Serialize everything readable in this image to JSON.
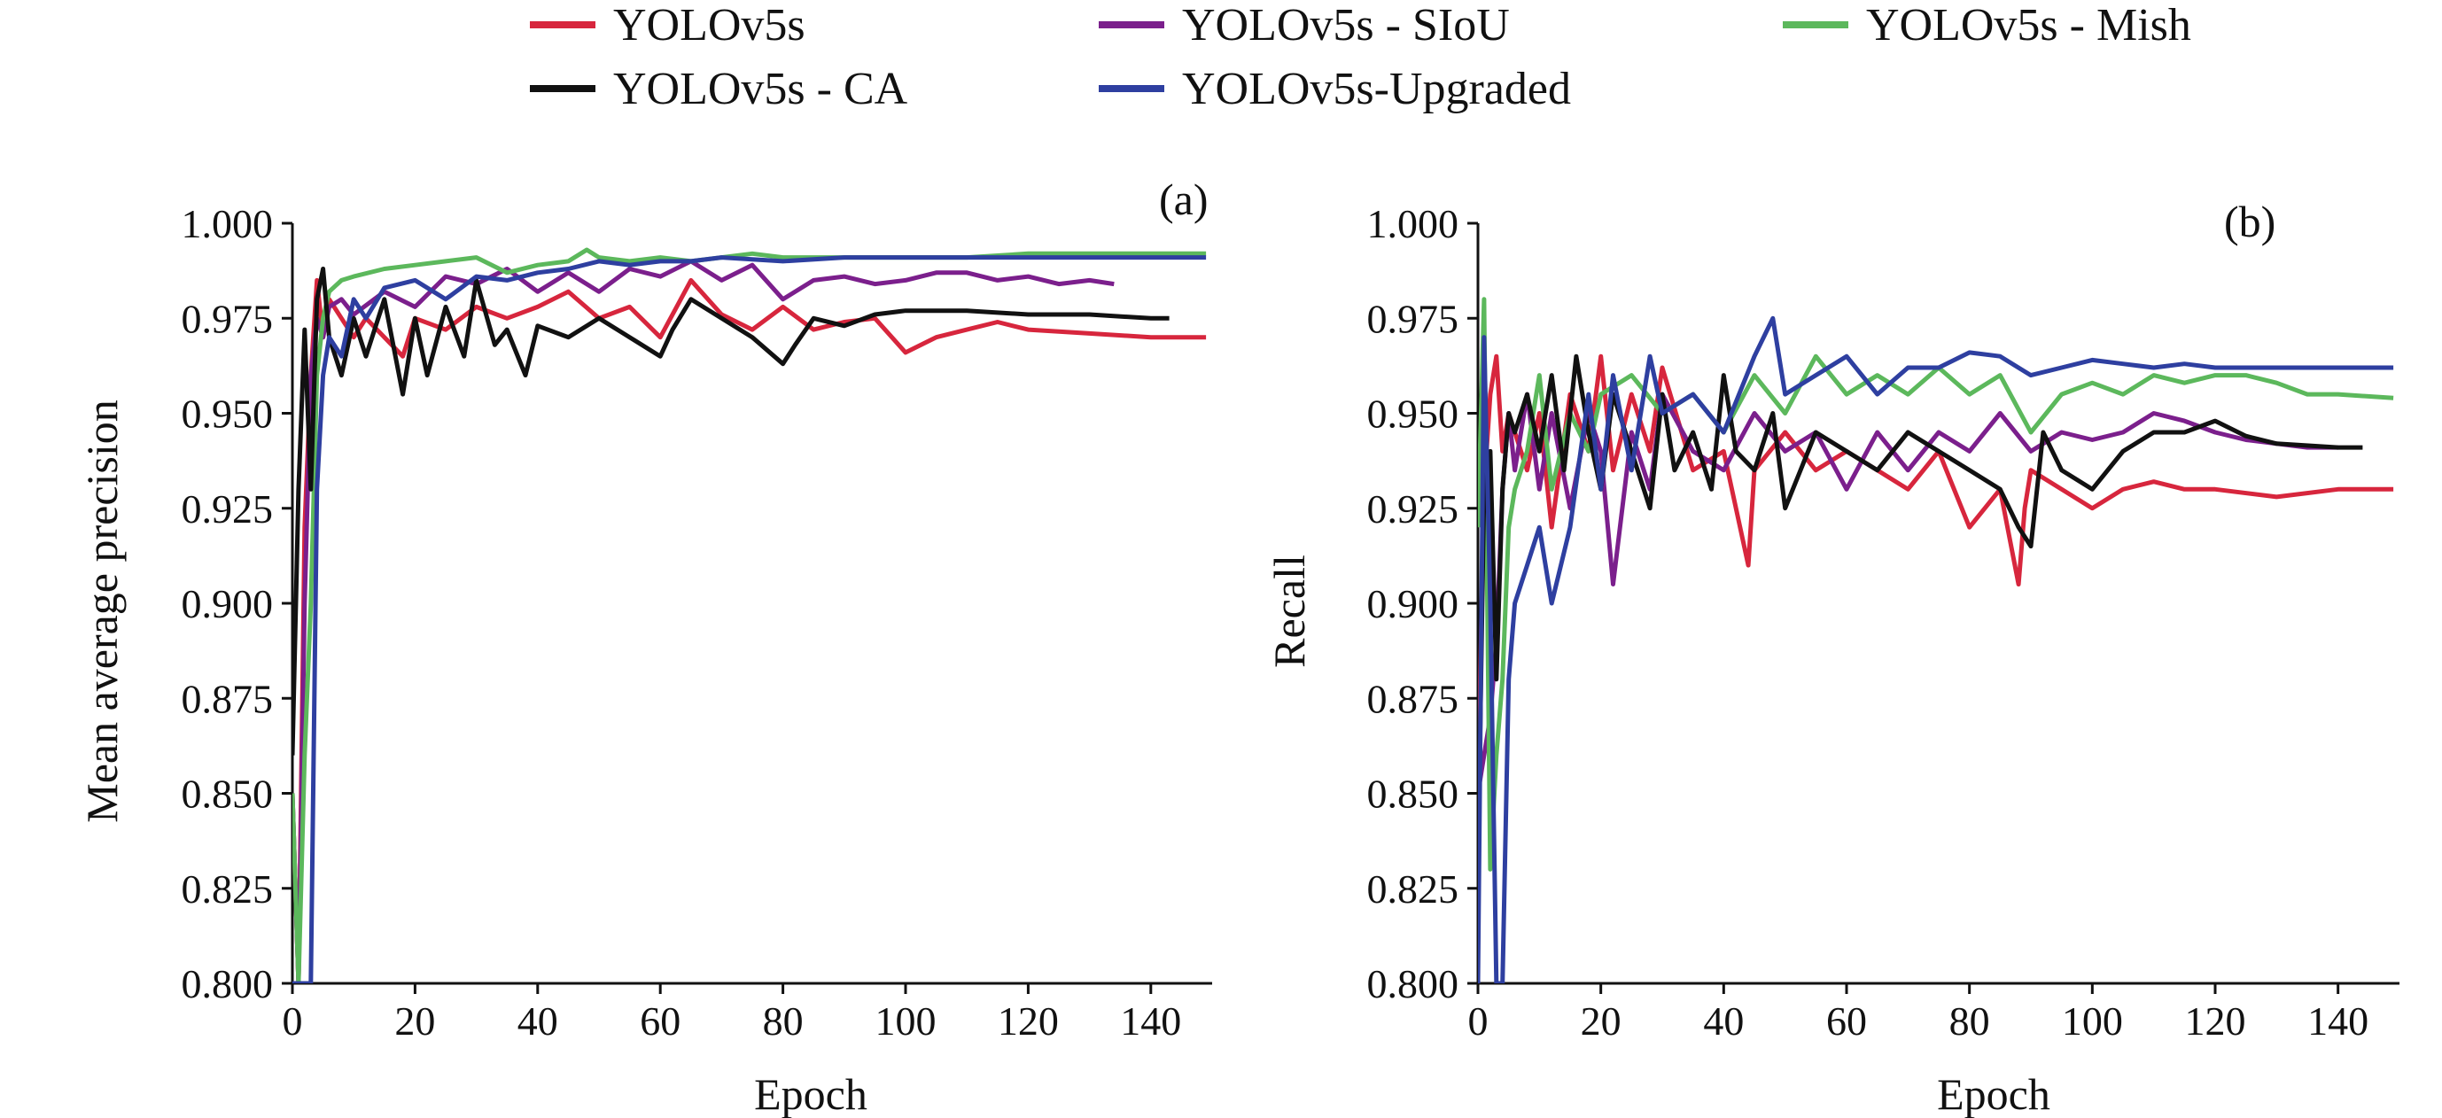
{
  "colors": {
    "YOLOv5s": "#d7263d",
    "YOLOv5s - SIoU": "#7b1f8c",
    "YOLOv5s - Mish": "#5cb85c",
    "YOLOv5s - CA": "#111111",
    "YOLOv5s-Upgraded": "#2e3fa0"
  },
  "legend": [
    {
      "label": "YOLOv5s"
    },
    {
      "label": "YOLOv5s - SIoU"
    },
    {
      "label": "YOLOv5s - Mish"
    },
    {
      "label": "YOLOv5s - CA"
    },
    {
      "label": "YOLOv5s-Upgraded"
    }
  ],
  "chart_data": [
    {
      "type": "line",
      "panel_label": "(a)",
      "xlabel": "Epoch",
      "ylabel": "Mean average precision",
      "xlim": [
        0,
        150
      ],
      "ylim": [
        0.8,
        1.0
      ],
      "xticks": [
        "0",
        "20",
        "40",
        "60",
        "80",
        "100",
        "120",
        "140"
      ],
      "yticks": [
        "0.800",
        "0.825",
        "0.850",
        "0.875",
        "0.900",
        "0.925",
        "0.950",
        "0.975",
        "1.000"
      ],
      "series": [
        {
          "name": "YOLOv5s",
          "x": [
            0,
            1,
            2,
            3,
            4,
            5,
            6,
            8,
            10,
            12,
            15,
            18,
            20,
            25,
            30,
            35,
            40,
            45,
            50,
            55,
            60,
            65,
            70,
            75,
            80,
            85,
            90,
            95,
            100,
            105,
            110,
            115,
            120,
            130,
            140,
            149
          ],
          "y": [
            0.85,
            0.8,
            0.92,
            0.96,
            0.985,
            0.97,
            0.98,
            0.975,
            0.97,
            0.975,
            0.97,
            0.965,
            0.975,
            0.972,
            0.978,
            0.975,
            0.978,
            0.982,
            0.975,
            0.978,
            0.97,
            0.985,
            0.976,
            0.972,
            0.978,
            0.972,
            0.974,
            0.975,
            0.966,
            0.97,
            0.972,
            0.974,
            0.972,
            0.971,
            0.97,
            0.97
          ]
        },
        {
          "name": "YOLOv5s - SIoU",
          "x": [
            0,
            1,
            2,
            3,
            4,
            5,
            6,
            8,
            10,
            15,
            20,
            25,
            30,
            35,
            40,
            45,
            50,
            55,
            60,
            65,
            70,
            75,
            80,
            85,
            90,
            95,
            100,
            105,
            110,
            115,
            120,
            125,
            130,
            134
          ],
          "y": [
            0.85,
            0.8,
            0.9,
            0.96,
            0.975,
            0.97,
            0.978,
            0.98,
            0.976,
            0.982,
            0.978,
            0.986,
            0.984,
            0.988,
            0.982,
            0.987,
            0.982,
            0.988,
            0.986,
            0.99,
            0.985,
            0.989,
            0.98,
            0.985,
            0.986,
            0.984,
            0.985,
            0.987,
            0.987,
            0.985,
            0.986,
            0.984,
            0.985,
            0.984
          ]
        },
        {
          "name": "YOLOv5s - Mish",
          "x": [
            0,
            1,
            2,
            3,
            4,
            5,
            6,
            8,
            10,
            15,
            20,
            25,
            30,
            35,
            40,
            45,
            48,
            50,
            55,
            60,
            65,
            70,
            75,
            80,
            90,
            100,
            110,
            120,
            130,
            140,
            149
          ],
          "y": [
            0.85,
            0.8,
            0.86,
            0.9,
            0.96,
            0.975,
            0.982,
            0.985,
            0.986,
            0.988,
            0.989,
            0.99,
            0.991,
            0.987,
            0.989,
            0.99,
            0.993,
            0.991,
            0.99,
            0.991,
            0.99,
            0.991,
            0.992,
            0.991,
            0.991,
            0.991,
            0.991,
            0.992,
            0.992,
            0.992,
            0.992
          ]
        },
        {
          "name": "YOLOv5s - CA",
          "x": [
            0,
            1,
            2,
            3,
            4,
            5,
            6,
            8,
            10,
            12,
            15,
            18,
            20,
            22,
            25,
            28,
            30,
            33,
            35,
            38,
            40,
            45,
            50,
            55,
            60,
            62,
            65,
            70,
            75,
            80,
            82,
            85,
            90,
            95,
            100,
            110,
            120,
            130,
            140,
            143
          ],
          "y": [
            0.86,
            0.93,
            0.972,
            0.93,
            0.98,
            0.988,
            0.97,
            0.96,
            0.975,
            0.965,
            0.98,
            0.955,
            0.975,
            0.96,
            0.978,
            0.965,
            0.985,
            0.968,
            0.972,
            0.96,
            0.973,
            0.97,
            0.975,
            0.97,
            0.965,
            0.972,
            0.98,
            0.975,
            0.97,
            0.963,
            0.968,
            0.975,
            0.973,
            0.976,
            0.977,
            0.977,
            0.976,
            0.976,
            0.975,
            0.975
          ]
        },
        {
          "name": "YOLOv5s-Upgraded",
          "x": [
            0,
            2,
            3,
            4,
            5,
            6,
            8,
            10,
            12,
            15,
            20,
            25,
            30,
            35,
            40,
            45,
            50,
            55,
            60,
            65,
            70,
            80,
            90,
            100,
            110,
            120,
            130,
            140,
            149
          ],
          "y": [
            0.8,
            0.8,
            0.8,
            0.93,
            0.96,
            0.97,
            0.965,
            0.98,
            0.975,
            0.983,
            0.985,
            0.98,
            0.986,
            0.985,
            0.987,
            0.988,
            0.99,
            0.989,
            0.99,
            0.99,
            0.991,
            0.99,
            0.991,
            0.991,
            0.991,
            0.991,
            0.991,
            0.991,
            0.991
          ]
        }
      ]
    },
    {
      "type": "line",
      "panel_label": "(b)",
      "xlabel": "Epoch",
      "ylabel": "Recall",
      "xlim": [
        0,
        150
      ],
      "ylim": [
        0.8,
        1.0
      ],
      "xticks": [
        "0",
        "20",
        "40",
        "60",
        "80",
        "100",
        "120",
        "140"
      ],
      "yticks": [
        "0.800",
        "0.825",
        "0.850",
        "0.875",
        "0.900",
        "0.925",
        "0.950",
        "0.975",
        "1.000"
      ],
      "series": [
        {
          "name": "YOLOv5s",
          "x": [
            0,
            1,
            2,
            3,
            4,
            5,
            6,
            8,
            10,
            12,
            15,
            18,
            20,
            22,
            25,
            28,
            30,
            35,
            40,
            44,
            45,
            50,
            55,
            60,
            65,
            70,
            75,
            80,
            85,
            88,
            89,
            90,
            95,
            100,
            105,
            110,
            115,
            120,
            130,
            140,
            149
          ],
          "y": [
            0.85,
            0.93,
            0.955,
            0.965,
            0.94,
            0.95,
            0.945,
            0.935,
            0.95,
            0.92,
            0.955,
            0.94,
            0.965,
            0.935,
            0.955,
            0.94,
            0.962,
            0.935,
            0.94,
            0.91,
            0.935,
            0.945,
            0.935,
            0.94,
            0.935,
            0.93,
            0.94,
            0.92,
            0.93,
            0.905,
            0.925,
            0.935,
            0.93,
            0.925,
            0.93,
            0.932,
            0.93,
            0.93,
            0.928,
            0.93,
            0.93
          ]
        },
        {
          "name": "YOLOv5s - SIoU",
          "x": [
            0,
            1,
            2,
            3,
            4,
            5,
            6,
            8,
            10,
            12,
            15,
            18,
            20,
            22,
            25,
            28,
            30,
            35,
            40,
            45,
            50,
            55,
            60,
            65,
            70,
            75,
            80,
            85,
            90,
            95,
            100,
            105,
            110,
            115,
            120,
            125,
            130,
            135,
            140
          ],
          "y": [
            0.85,
            0.86,
            0.87,
            0.89,
            0.93,
            0.95,
            0.935,
            0.955,
            0.93,
            0.95,
            0.925,
            0.95,
            0.94,
            0.905,
            0.945,
            0.93,
            0.955,
            0.94,
            0.935,
            0.95,
            0.94,
            0.945,
            0.93,
            0.945,
            0.935,
            0.945,
            0.94,
            0.95,
            0.94,
            0.945,
            0.943,
            0.945,
            0.95,
            0.948,
            0.945,
            0.943,
            0.942,
            0.941,
            0.941
          ]
        },
        {
          "name": "YOLOv5s - Mish",
          "x": [
            0,
            1,
            2,
            3,
            4,
            5,
            6,
            8,
            10,
            12,
            15,
            18,
            20,
            25,
            30,
            35,
            40,
            45,
            50,
            55,
            60,
            65,
            70,
            75,
            80,
            85,
            90,
            95,
            100,
            105,
            110,
            115,
            120,
            125,
            130,
            135,
            140,
            149
          ],
          "y": [
            0.92,
            0.98,
            0.83,
            0.86,
            0.88,
            0.92,
            0.93,
            0.94,
            0.96,
            0.93,
            0.95,
            0.94,
            0.955,
            0.96,
            0.95,
            0.955,
            0.945,
            0.96,
            0.95,
            0.965,
            0.955,
            0.96,
            0.955,
            0.962,
            0.955,
            0.96,
            0.945,
            0.955,
            0.958,
            0.955,
            0.96,
            0.958,
            0.96,
            0.96,
            0.958,
            0.955,
            0.955,
            0.954
          ]
        },
        {
          "name": "YOLOv5s - CA",
          "x": [
            0,
            1,
            2,
            3,
            4,
            5,
            6,
            8,
            10,
            12,
            14,
            16,
            18,
            20,
            22,
            25,
            28,
            30,
            32,
            35,
            38,
            40,
            42,
            45,
            48,
            50,
            55,
            60,
            65,
            70,
            75,
            80,
            85,
            88,
            90,
            92,
            95,
            100,
            105,
            110,
            115,
            120,
            125,
            130,
            140,
            144
          ],
          "y": [
            0.83,
            0.93,
            0.94,
            0.88,
            0.93,
            0.95,
            0.945,
            0.955,
            0.94,
            0.96,
            0.935,
            0.965,
            0.945,
            0.93,
            0.955,
            0.94,
            0.925,
            0.955,
            0.935,
            0.945,
            0.93,
            0.96,
            0.94,
            0.935,
            0.95,
            0.925,
            0.945,
            0.94,
            0.935,
            0.945,
            0.94,
            0.935,
            0.93,
            0.92,
            0.915,
            0.945,
            0.935,
            0.93,
            0.94,
            0.945,
            0.945,
            0.948,
            0.944,
            0.942,
            0.941,
            0.941
          ]
        },
        {
          "name": "YOLOv5s-Upgraded",
          "x": [
            0,
            1,
            2,
            3,
            4,
            5,
            6,
            8,
            10,
            12,
            15,
            18,
            20,
            22,
            25,
            28,
            30,
            35,
            40,
            45,
            48,
            50,
            55,
            60,
            65,
            70,
            75,
            80,
            85,
            90,
            95,
            100,
            105,
            110,
            115,
            120,
            130,
            140,
            149
          ],
          "y": [
            0.8,
            0.97,
            0.9,
            0.8,
            0.8,
            0.88,
            0.9,
            0.91,
            0.92,
            0.9,
            0.92,
            0.955,
            0.93,
            0.96,
            0.935,
            0.965,
            0.95,
            0.955,
            0.945,
            0.965,
            0.975,
            0.955,
            0.96,
            0.965,
            0.955,
            0.962,
            0.962,
            0.966,
            0.965,
            0.96,
            0.962,
            0.964,
            0.963,
            0.962,
            0.963,
            0.962,
            0.962,
            0.962,
            0.962
          ]
        }
      ]
    }
  ]
}
